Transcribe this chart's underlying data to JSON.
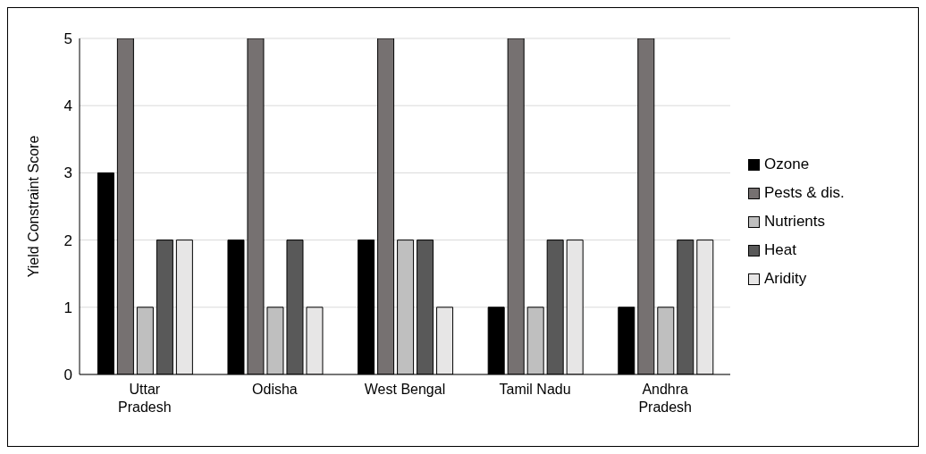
{
  "chart_data": {
    "type": "bar",
    "ylabel": "Yield Constraint Score",
    "categories": [
      "Uttar Pradesh",
      "Odisha",
      "West Bengal",
      "Tamil Nadu",
      "Andhra Pradesh"
    ],
    "series": [
      {
        "name": "Ozone",
        "color": "#000000",
        "values": [
          3,
          2,
          2,
          1,
          1
        ]
      },
      {
        "name": "Pests & dis.",
        "color": "#767171",
        "values": [
          5,
          5,
          5,
          5,
          5
        ]
      },
      {
        "name": "Nutrients",
        "color": "#bfbfbf",
        "values": [
          1,
          1,
          2,
          1,
          1
        ]
      },
      {
        "name": "Heat",
        "color": "#595959",
        "values": [
          2,
          2,
          2,
          2,
          2
        ]
      },
      {
        "name": "Aridity",
        "color": "#e7e6e6",
        "values": [
          2,
          1,
          1,
          2,
          2
        ]
      }
    ],
    "ylim": [
      0,
      5
    ],
    "yticks": [
      0,
      1,
      2,
      3,
      4,
      5
    ],
    "grid": "y",
    "legend": "right"
  }
}
